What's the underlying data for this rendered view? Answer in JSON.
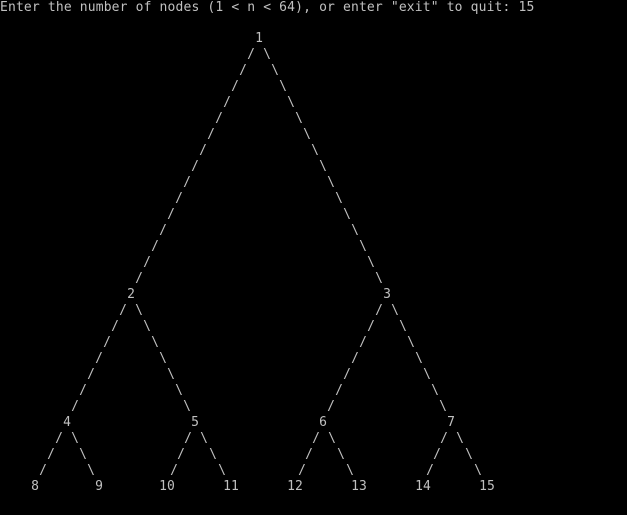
{
  "terminal": {
    "prompt": "Enter the number of nodes (1 < n < 64), or enter \"exit\" to quit: ",
    "input_value": "15",
    "foreground": "#c0c0c0",
    "background": "#000000"
  },
  "tree": {
    "nodes": [
      {
        "label": "1"
      },
      {
        "label": "2"
      },
      {
        "label": "3"
      },
      {
        "label": "4"
      },
      {
        "label": "5"
      },
      {
        "label": "6"
      },
      {
        "label": "7"
      },
      {
        "label": "8"
      },
      {
        "label": "9"
      },
      {
        "label": "10"
      },
      {
        "label": "11"
      },
      {
        "label": "12"
      },
      {
        "label": "13"
      },
      {
        "label": "14"
      },
      {
        "label": "15"
      }
    ],
    "edges": [
      {
        "from": "1",
        "to": "2"
      },
      {
        "from": "1",
        "to": "3"
      },
      {
        "from": "2",
        "to": "4"
      },
      {
        "from": "2",
        "to": "5"
      },
      {
        "from": "3",
        "to": "6"
      },
      {
        "from": "3",
        "to": "7"
      },
      {
        "from": "4",
        "to": "8"
      },
      {
        "from": "4",
        "to": "9"
      },
      {
        "from": "5",
        "to": "10"
      },
      {
        "from": "5",
        "to": "11"
      },
      {
        "from": "6",
        "to": "12"
      },
      {
        "from": "6",
        "to": "13"
      },
      {
        "from": "7",
        "to": "14"
      },
      {
        "from": "7",
        "to": "15"
      }
    ],
    "left_branch_char": "/",
    "right_branch_char": "\\"
  }
}
